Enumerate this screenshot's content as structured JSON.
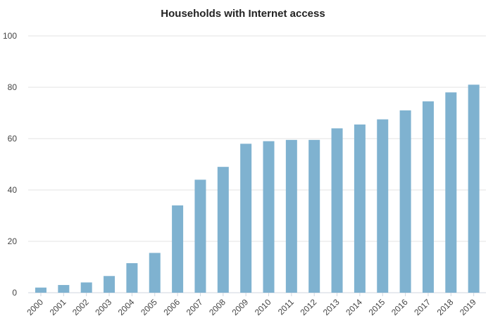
{
  "chart_data": {
    "type": "bar",
    "title": "Households with Internet access",
    "xlabel": "",
    "ylabel": "",
    "categories": [
      "2000",
      "2001",
      "2002",
      "2003",
      "2004",
      "2005",
      "2006",
      "2007",
      "2008",
      "2009",
      "2010",
      "2011",
      "2012",
      "2013",
      "2014",
      "2015",
      "2016",
      "2017",
      "2018",
      "2019"
    ],
    "values": [
      2,
      3,
      4,
      6.5,
      11.5,
      15.5,
      34,
      44,
      49,
      58,
      59,
      59.5,
      59.5,
      64,
      65.5,
      67.5,
      71,
      74.5,
      78,
      81
    ],
    "ylim": [
      0,
      100
    ],
    "yticks": [
      0,
      20,
      40,
      60,
      80,
      100
    ],
    "grid": true,
    "legend": "none",
    "bar_color": "#7fb2d0"
  }
}
